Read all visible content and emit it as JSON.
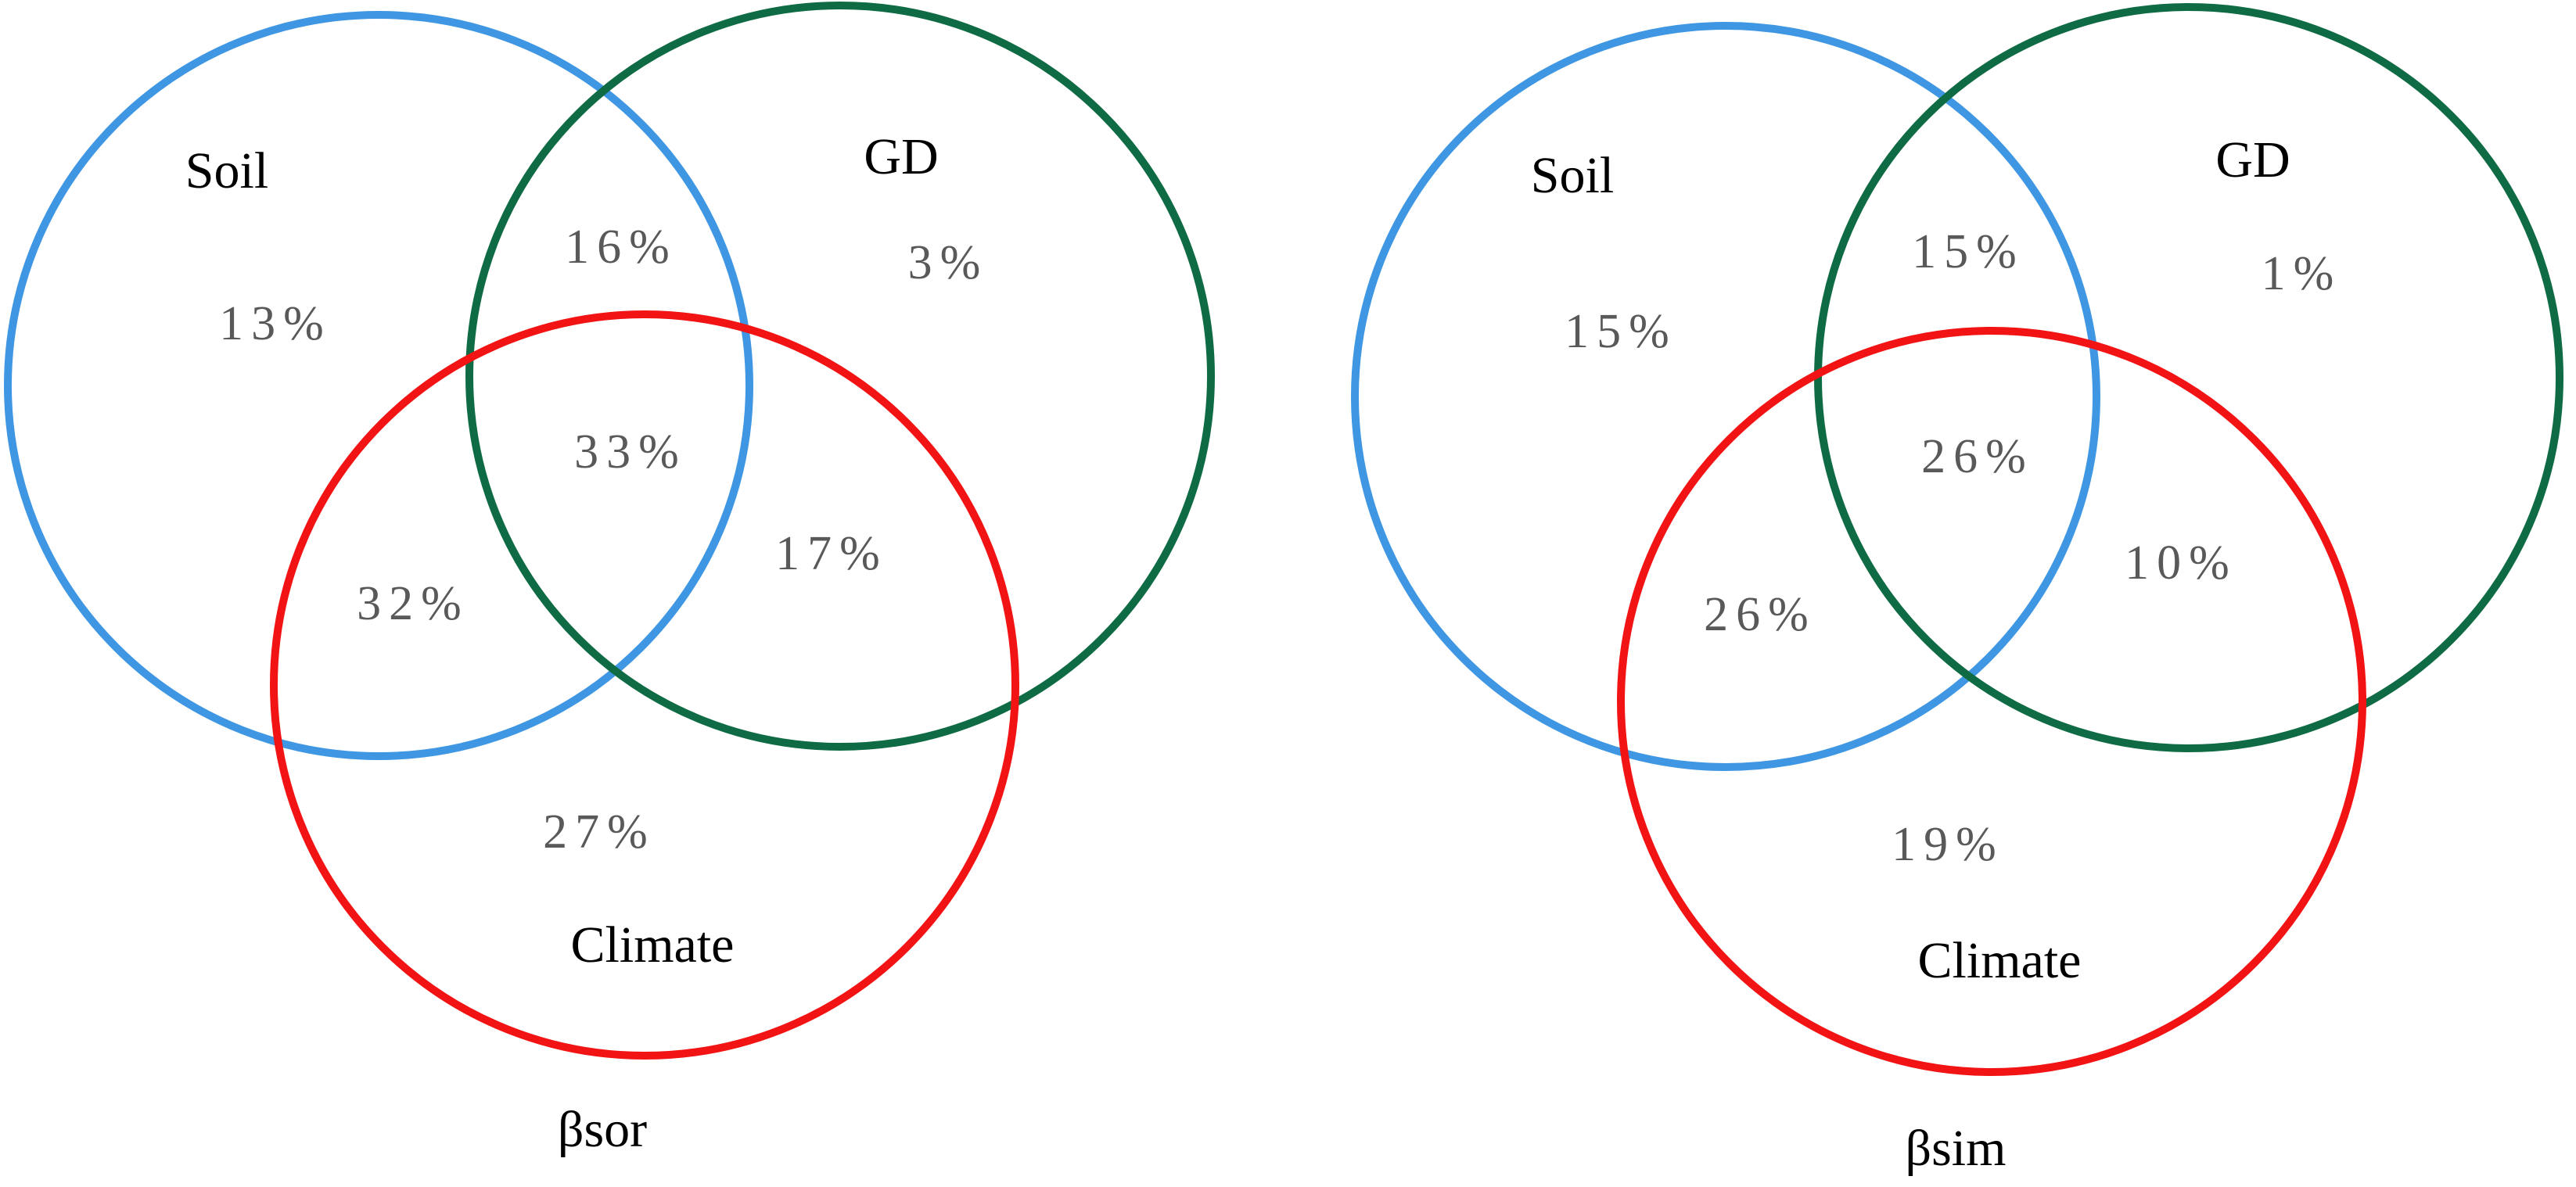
{
  "colors": {
    "soil": "#3f97e3",
    "gd": "#0f6b43",
    "climate": "#f21414",
    "label": "#000000",
    "value": "#595959"
  },
  "panels": [
    {
      "caption": "βsor",
      "labels": {
        "soil": "Soil",
        "gd": "GD",
        "climate": "Climate"
      },
      "values": {
        "soil_only": "13%",
        "gd_only": "3%",
        "climate_only": "27%",
        "soil_gd": "16%",
        "soil_climate": "32%",
        "gd_climate": "17%",
        "all": "33%"
      }
    },
    {
      "caption": "βsim",
      "labels": {
        "soil": "Soil",
        "gd": "GD",
        "climate": "Climate"
      },
      "values": {
        "soil_only": "15%",
        "gd_only": "1%",
        "climate_only": "19%",
        "soil_gd": "15%",
        "soil_climate": "26%",
        "gd_climate": "10%",
        "all": "26%"
      }
    }
  ]
}
